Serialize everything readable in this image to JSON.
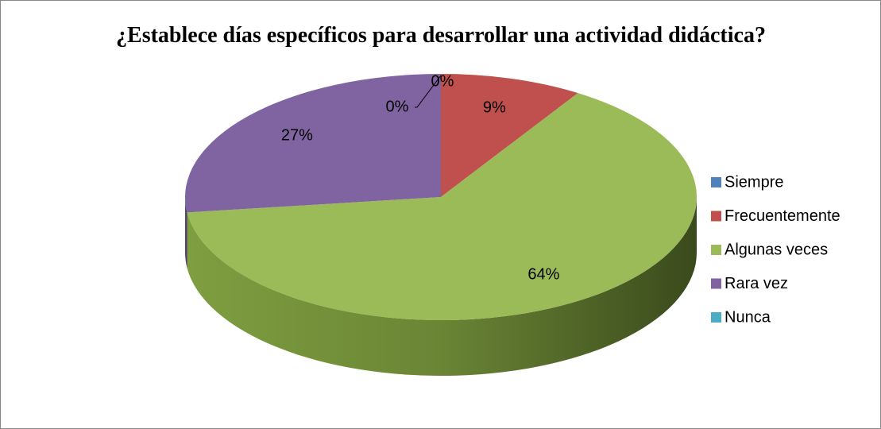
{
  "chart_data": {
    "type": "pie",
    "title": "¿Establece días específicos para desarrollar una actividad didáctica?",
    "categories": [
      "Siempre",
      "Frecuentemente",
      "Algunas veces",
      "Rara vez",
      "Nunca"
    ],
    "values": [
      0,
      9,
      64,
      27,
      0
    ],
    "value_labels": [
      "0%",
      "9%",
      "64%",
      "27%",
      "0%"
    ],
    "colors": [
      "#4f81bd",
      "#c0504d",
      "#9bbb59",
      "#8064a2",
      "#4bacc6"
    ],
    "legend": "right"
  }
}
